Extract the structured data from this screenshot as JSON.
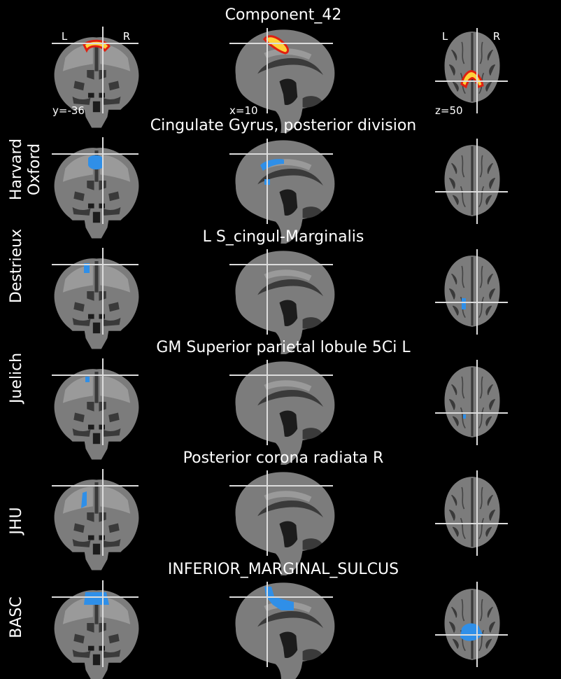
{
  "component": {
    "title": "Component_42",
    "orientation": {
      "left": "L",
      "right": "R"
    },
    "coordinates": {
      "coronal": "y=-36",
      "sagittal": "x=10",
      "axial": "z=50"
    }
  },
  "atlases": [
    {
      "name_line1": "Harvard",
      "name_line2": "Oxford",
      "region": "Cingulate Gyrus, posterior division"
    },
    {
      "name_line1": "Destrieux",
      "name_line2": "",
      "region": "L S_cingul-Marginalis"
    },
    {
      "name_line1": "Juelich",
      "name_line2": "",
      "region": "GM Superior parietal lobule 5Ci L"
    },
    {
      "name_line1": "JHU",
      "name_line2": "",
      "region": "Posterior corona radiata R"
    },
    {
      "name_line1": "BASC",
      "name_line2": "",
      "region": "INFERIOR_MARGINAL_SULCUS"
    }
  ],
  "colors": {
    "background": "#000000",
    "brain": "#7c7c7c",
    "component_hot": "#ffd23a",
    "component_edge": "#e02010",
    "atlas_blue": "#2f8fe8",
    "crosshair": "#dcdcdc",
    "text": "#ffffff"
  }
}
